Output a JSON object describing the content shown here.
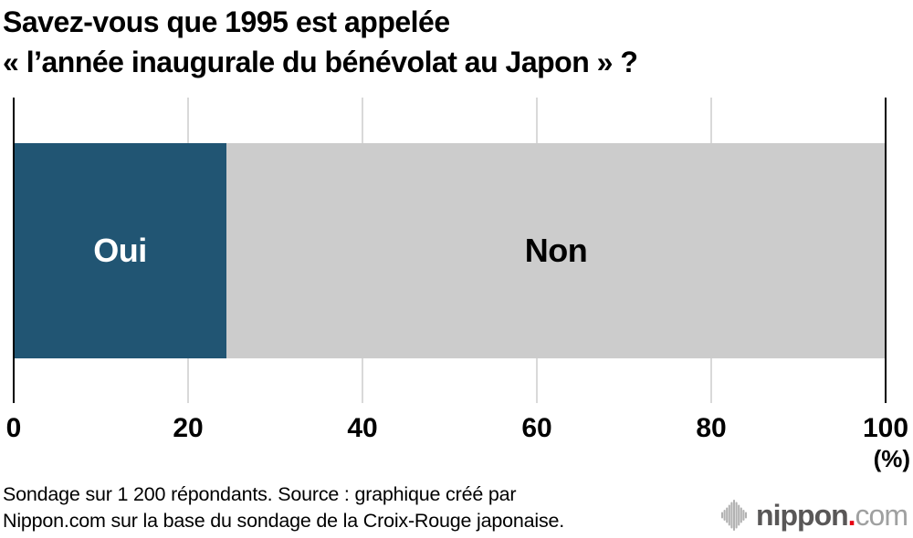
{
  "title": {
    "line1": "Savez-vous que 1995 est appelée",
    "line2": "« l’année inaugurale du bénévolat au Japon » ?"
  },
  "chart_data": {
    "type": "bar",
    "orientation": "horizontal-stacked",
    "title": "Savez-vous que 1995 est appelée « l’année inaugurale du bénévolat au Japon » ?",
    "categories": [
      "Oui",
      "Non"
    ],
    "values": [
      24.4,
      75.6
    ],
    "colors": [
      "#215573",
      "#cccccc"
    ],
    "label_colors": [
      "#ffffff",
      "#000000"
    ],
    "xlim": [
      0,
      100
    ],
    "x_ticks": [
      0,
      20,
      40,
      60,
      80,
      100
    ],
    "x_unit_label": "(%)",
    "grid": true,
    "gridline_color": "#d9d9d9",
    "axis_edge_color": "#000000",
    "legend_position": "in-bar"
  },
  "footer": {
    "line1": "Sondage sur 1 200 répondants. Source : graphique créé par",
    "line2": "Nippon.com sur la base du sondage de la Croix-Rouge japonaise."
  },
  "logo": {
    "name": "nippon",
    "dot": ".",
    "suffix": "com",
    "brand_text_color": "#595757",
    "dot_color": "#e60012",
    "suffix_color": "#9fa0a0",
    "icon_color": "#b2b2b2"
  }
}
